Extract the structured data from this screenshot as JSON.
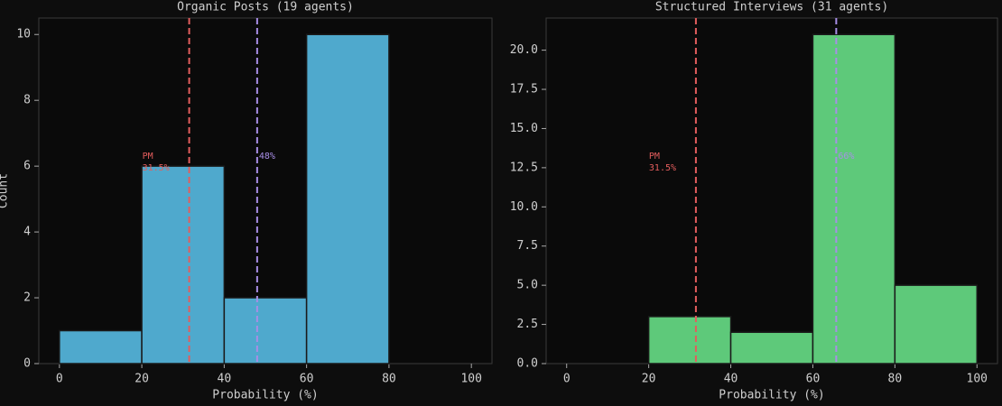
{
  "chart_data": [
    {
      "type": "histogram",
      "title": "Organic Posts (19 agents)",
      "xlabel": "Probability (%)",
      "ylabel": "Count",
      "bins": [
        0,
        20,
        40,
        60,
        80
      ],
      "values": [
        1,
        6,
        2,
        10
      ],
      "color": "#4fa9cd",
      "xlim": [
        -5,
        105
      ],
      "ylim": [
        0,
        10.5
      ],
      "xticks": [
        0,
        20,
        40,
        60,
        80,
        100
      ],
      "yticks": [
        0,
        2,
        4,
        6,
        8,
        10
      ],
      "vlines": [
        {
          "value": 31.5,
          "color": "#e35d5d",
          "labels": [
            "PM",
            "31.5%"
          ]
        },
        {
          "value": 48,
          "color": "#a88ee6",
          "labels": [
            "48%"
          ]
        }
      ]
    },
    {
      "type": "histogram",
      "title": "Structured Interviews (31 agents)",
      "xlabel": "Probability (%)",
      "bins": [
        0,
        20,
        40,
        60,
        80,
        100
      ],
      "values": [
        0,
        3,
        2,
        21,
        5
      ],
      "color": "#5ec97a",
      "xlim": [
        -5,
        105
      ],
      "ylim": [
        0,
        22.05
      ],
      "xticks": [
        0,
        20,
        40,
        60,
        80,
        100
      ],
      "yticks": [
        {
          "value": 0,
          "label": "0.0"
        },
        {
          "value": 2.5,
          "label": "2.5"
        },
        {
          "value": 5,
          "label": "5.0"
        },
        {
          "value": 7.5,
          "label": "7.5"
        },
        {
          "value": 10,
          "label": "10.0"
        },
        {
          "value": 12.5,
          "label": "12.5"
        },
        {
          "value": 15,
          "label": "15.0"
        },
        {
          "value": 17.5,
          "label": "17.5"
        },
        {
          "value": 20,
          "label": "20.0"
        }
      ],
      "vlines": [
        {
          "value": 31.5,
          "color": "#e35d5d",
          "labels": [
            "PM",
            "31.5%"
          ]
        },
        {
          "value": 65.7,
          "color": "#a88ee6",
          "labels": [
            "66%"
          ]
        }
      ]
    }
  ]
}
